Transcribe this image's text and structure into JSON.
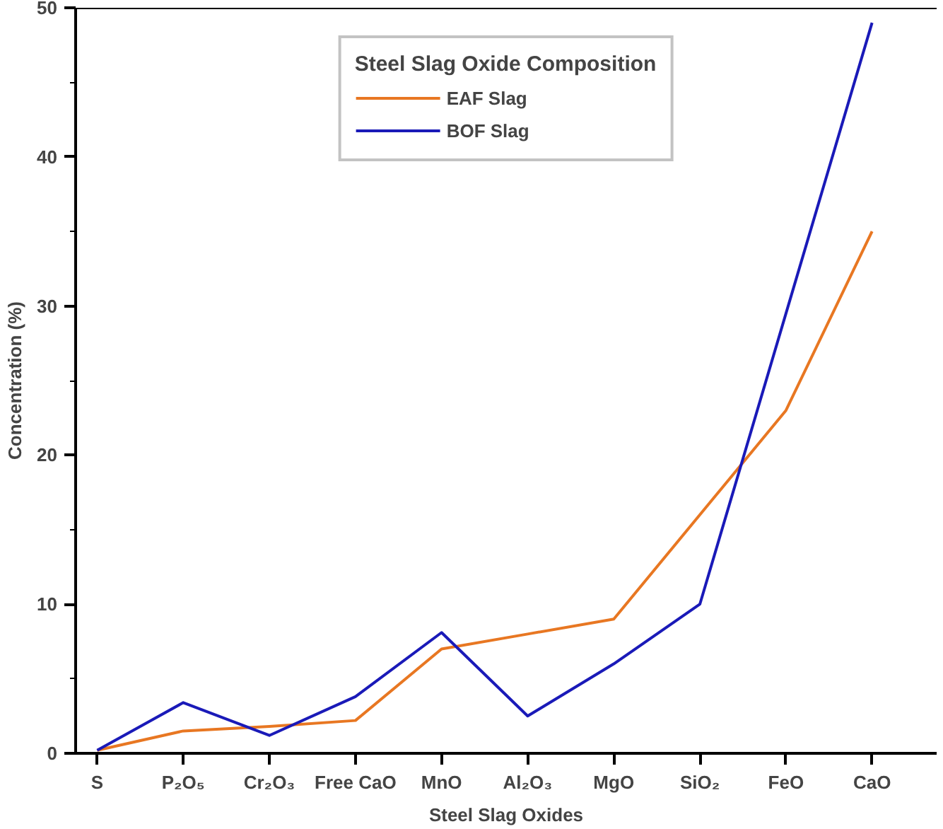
{
  "chart_data": {
    "type": "line",
    "xlabel": "Steel Slag Oxides",
    "ylabel": "Concentration (%)",
    "legend_title": "Steel Slag Oxide Composition",
    "categories": [
      "S",
      "P₂O₅",
      "Cr₂O₃",
      "Free CaO",
      "MnO",
      "Al₂O₃",
      "MgO",
      "SiO₂",
      "FeO",
      "CaO"
    ],
    "series": [
      {
        "name": "EAF Slag",
        "color": "#e87722",
        "values": [
          0.2,
          1.5,
          1.8,
          2.2,
          7,
          8,
          9,
          16,
          23,
          35
        ]
      },
      {
        "name": "BOF Slag",
        "color": "#1a1ab8",
        "values": [
          0.2,
          3.4,
          1.2,
          3.8,
          8.1,
          2.5,
          6,
          10,
          29.5,
          49
        ]
      }
    ],
    "ylim": [
      0,
      50
    ],
    "yticks": [
      0,
      {
        "value": 5,
        "label": null
      },
      10,
      {
        "value": 15,
        "label": null
      },
      20,
      {
        "value": 25,
        "label": null
      },
      30,
      {
        "value": 35,
        "label": null
      },
      40,
      {
        "value": 45,
        "label": null
      },
      50
    ],
    "legend": "top",
    "grid": false,
    "marker": "none",
    "line_style": "solid"
  }
}
